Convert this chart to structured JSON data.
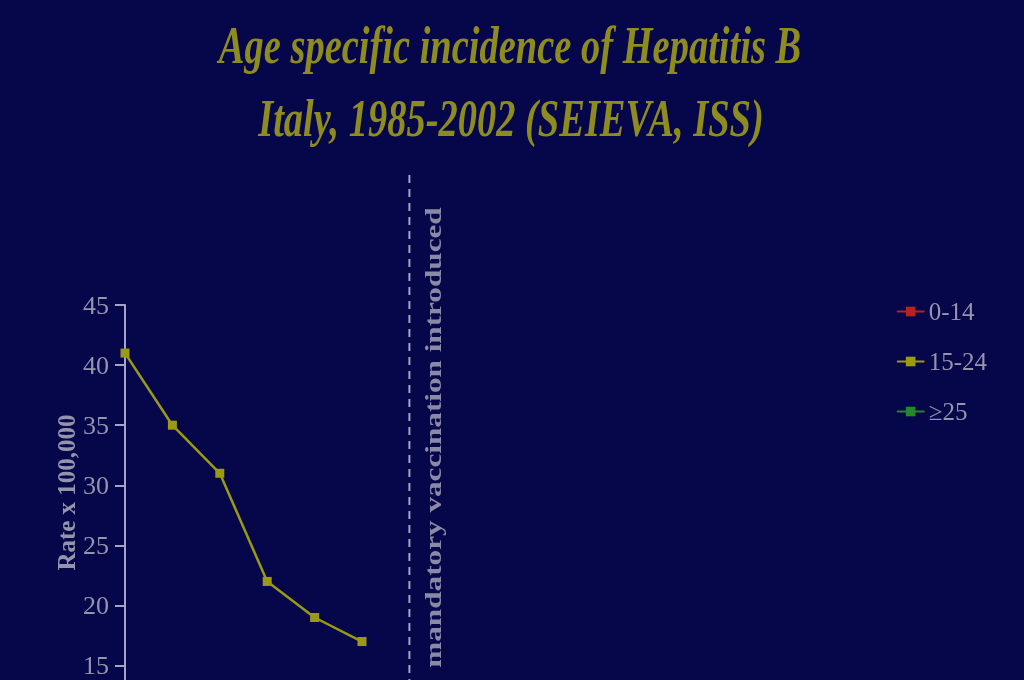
{
  "chart_data": {
    "type": "line",
    "title": "Age specific incidence of Hepatitis B",
    "subtitle": "Italy, 1985-2002 (SEIEVA, ISS)",
    "ylabel": "Rate x 100,000",
    "categories": [
      null,
      null,
      null,
      null,
      null,
      null
    ],
    "series": [
      {
        "name": "0-14",
        "color": "#b42222",
        "values": [
          null,
          null,
          null,
          null,
          null,
          null
        ]
      },
      {
        "name": "15-24",
        "color": "#9a9a14",
        "values": [
          41,
          35,
          31,
          22,
          19,
          17
        ]
      },
      {
        "name": "≥25",
        "color": "#22882a",
        "values": [
          null,
          null,
          null,
          null,
          null,
          null
        ]
      }
    ],
    "ylim": [
      13.8,
      45
    ],
    "yticks": [
      15,
      20,
      25,
      30,
      35,
      40,
      45
    ],
    "annotations": [
      "mandatory vaccination introduced"
    ],
    "tick_labels": "y",
    "legend": "top right",
    "marker": "square"
  }
}
